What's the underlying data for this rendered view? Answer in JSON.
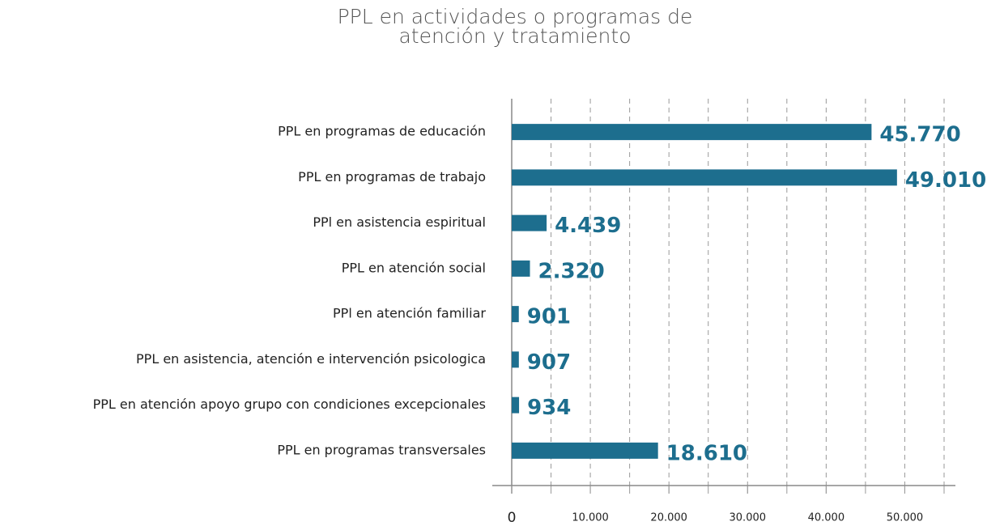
{
  "chart_data": {
    "type": "bar",
    "orientation": "horizontal",
    "title_lines": [
      "PPL en actividades o programas de",
      "atención y tratamiento"
    ],
    "categories": [
      "PPL en programas de educación",
      "PPL en programas de trabajo",
      "PPl en asistencia espiritual",
      "PPL en atención social",
      "PPl en atención familiar",
      "PPL en asistencia, atención e intervención psicologica",
      "PPL en atención apoyo grupo con condiciones excepcionales",
      "PPL en programas transversales"
    ],
    "values": [
      45770,
      49010,
      4439,
      2320,
      901,
      907,
      934,
      18610
    ],
    "value_labels": [
      "45.770",
      "49.010",
      "4.439",
      "2.320",
      "901",
      "907",
      "934",
      "18.610"
    ],
    "color": "#1d6e8e",
    "xlim": [
      0,
      55000
    ],
    "xticks": [
      0,
      {
        "value": 10000,
        "label": "10.000"
      },
      {
        "value": 20000,
        "label": "20.000"
      },
      {
        "value": 30000,
        "label": "30.000"
      },
      {
        "value": 40000,
        "label": "40.000"
      },
      {
        "value": 50000,
        "label": "50.000"
      }
    ],
    "grid_lines": [
      5000,
      10000,
      15000,
      20000,
      25000,
      30000,
      35000,
      40000,
      45000,
      50000,
      55000
    ],
    "grid": true
  }
}
